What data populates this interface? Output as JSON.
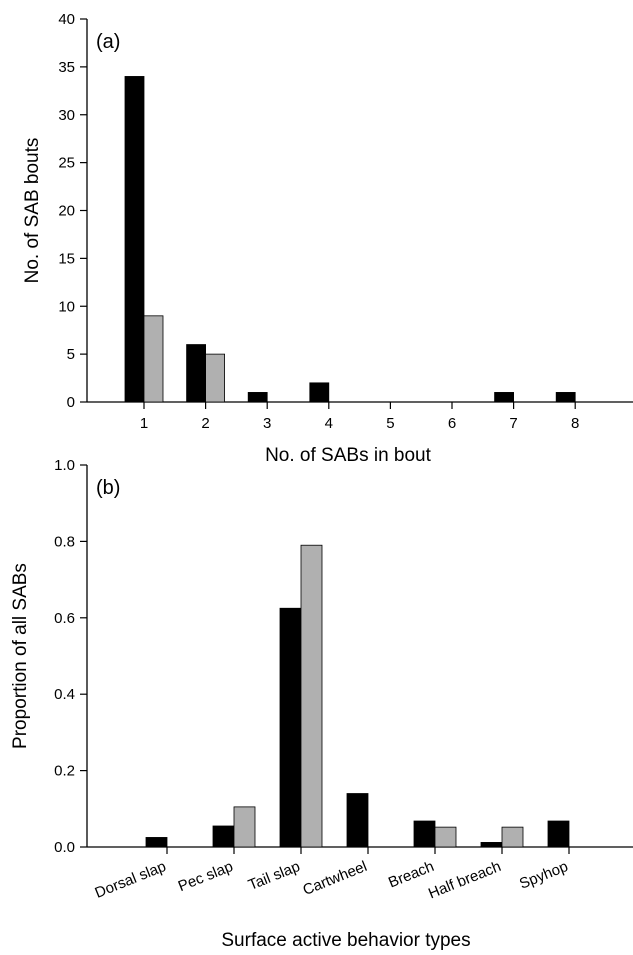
{
  "chart_data": [
    {
      "type": "bar",
      "panel_label": "(a)",
      "xlabel": "No. of SABs in bout",
      "ylabel": "No. of SAB bouts",
      "ylim": [
        0,
        40
      ],
      "yticks": [
        0,
        5,
        10,
        15,
        20,
        25,
        30,
        35,
        40
      ],
      "categories": [
        "1",
        "2",
        "3",
        "4",
        "5",
        "6",
        "7",
        "8"
      ],
      "series": [
        {
          "color": "#000000",
          "values": [
            34,
            6,
            1,
            2,
            0,
            0,
            1,
            1
          ]
        },
        {
          "color": "#b0b0b0",
          "values": [
            9,
            5,
            0,
            0,
            0,
            0,
            0,
            0
          ]
        }
      ],
      "grid": false,
      "legend": "none"
    },
    {
      "type": "bar",
      "panel_label": "(b)",
      "xlabel": "Surface active behavior types",
      "ylabel": "Proportion of all SABs",
      "ylim": [
        0,
        1.0
      ],
      "yticks": [
        "0.0",
        "0.2",
        "0.4",
        "0.6",
        "0.8",
        "1.0"
      ],
      "categories": [
        "Dorsal slap",
        "Pec slap",
        "Tail slap",
        "Cartwheel",
        "Breach",
        "Half breach",
        "Spyhop"
      ],
      "series": [
        {
          "color": "#000000",
          "values": [
            0.025,
            0.055,
            0.625,
            0.14,
            0.068,
            0.012,
            0.068
          ]
        },
        {
          "color": "#b0b0b0",
          "values": [
            0,
            0.105,
            0.79,
            0,
            0.052,
            0.052,
            0
          ]
        }
      ],
      "grid": false,
      "legend": "none"
    }
  ]
}
